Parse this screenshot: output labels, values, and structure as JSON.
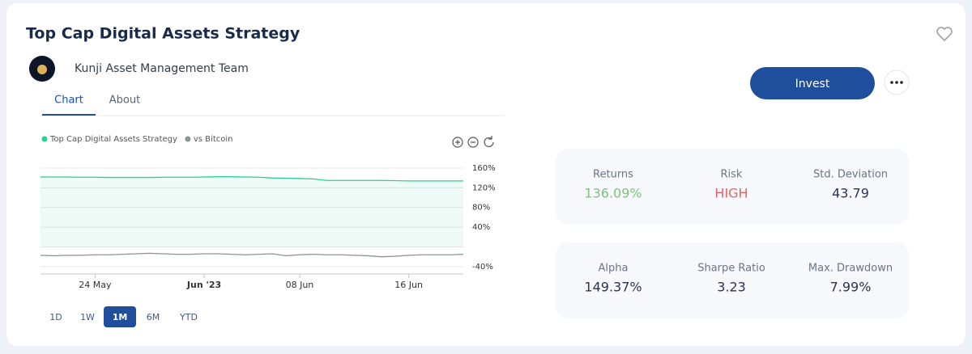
{
  "header": {
    "title": "Top Cap Digital Assets Strategy",
    "team": "Kunji Asset Management Team"
  },
  "tabs": [
    "Chart",
    "About"
  ],
  "active_tab": 0,
  "invest_button": "Invest",
  "ranges": [
    "1D",
    "1W",
    "1M",
    "6M",
    "YTD"
  ],
  "active_range": 2,
  "stats": [
    [
      {
        "label": "Returns",
        "value": "136.09%",
        "color": "#7cc47c"
      },
      {
        "label": "Risk",
        "value": "HIGH",
        "color": "#e86464"
      },
      {
        "label": "Std. Deviation",
        "value": "43.79",
        "color": "#2a3550"
      }
    ],
    [
      {
        "label": "Alpha",
        "value": "149.37%",
        "color": "#2a3550"
      },
      {
        "label": "Sharpe Ratio",
        "value": "3.23",
        "color": "#2a3550"
      },
      {
        "label": "Max. Drawdown",
        "value": "7.99%",
        "color": "#2a3550"
      }
    ]
  ],
  "chart_data": {
    "type": "line",
    "categories": [
      null,
      null,
      null,
      null,
      "24 May",
      null,
      null,
      null,
      null,
      null,
      null,
      null,
      "Jun '23",
      null,
      null,
      null,
      null,
      null,
      null,
      "08 Jun",
      null,
      null,
      null,
      null,
      null,
      null,
      null,
      "16 Jun",
      null,
      null,
      null,
      null
    ],
    "series": [
      {
        "name": "Top Cap Digital Assets Strategy",
        "color": "#2ecc9a",
        "values": [
          142,
          142,
          142,
          141.5,
          141.5,
          141,
          141,
          141,
          141,
          141.5,
          141.5,
          141.5,
          142,
          142.5,
          142.5,
          142,
          141.5,
          140,
          139.5,
          139,
          138,
          135,
          135,
          135,
          135,
          135,
          134.5,
          134,
          134,
          134,
          134,
          134
        ]
      },
      {
        "name": "vs Bitcoin",
        "color": "#8a9696",
        "values": [
          -17,
          -18,
          -17,
          -17,
          -16,
          -16,
          -15,
          -14,
          -13,
          -14,
          -15,
          -15,
          -14,
          -14,
          -15,
          -16,
          -15,
          -14,
          -18,
          -16,
          -15,
          -16,
          -16,
          -17,
          -18,
          -20,
          -19,
          -17,
          -16,
          -16,
          -16,
          -15
        ]
      }
    ],
    "ylim": [
      -55,
      160
    ],
    "yticks": [
      {
        "value": 160,
        "label": "160%"
      },
      {
        "value": 120,
        "label": "120%"
      },
      {
        "value": 80,
        "label": "80%"
      },
      {
        "value": 40,
        "label": "40%"
      },
      {
        "value": 0,
        "label": ""
      },
      {
        "value": -40,
        "label": "-40%"
      }
    ],
    "grid": true
  }
}
